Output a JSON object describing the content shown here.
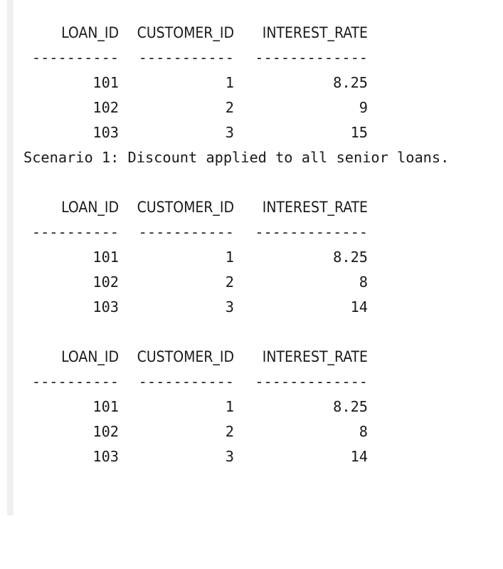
{
  "columns": {
    "col1": "LOAN_ID",
    "col2": "CUSTOMER_ID",
    "col3": "INTEREST_RATE"
  },
  "separators": {
    "col1": "----------",
    "col2": "-----------",
    "col3": "-------------"
  },
  "tables": [
    {
      "rows": [
        {
          "loan_id": "101",
          "customer_id": "1",
          "interest_rate": "8.25"
        },
        {
          "loan_id": "102",
          "customer_id": "2",
          "interest_rate": "9"
        },
        {
          "loan_id": "103",
          "customer_id": "3",
          "interest_rate": "15"
        }
      ]
    },
    {
      "rows": [
        {
          "loan_id": "101",
          "customer_id": "1",
          "interest_rate": "8.25"
        },
        {
          "loan_id": "102",
          "customer_id": "2",
          "interest_rate": "8"
        },
        {
          "loan_id": "103",
          "customer_id": "3",
          "interest_rate": "14"
        }
      ]
    },
    {
      "rows": [
        {
          "loan_id": "101",
          "customer_id": "1",
          "interest_rate": "8.25"
        },
        {
          "loan_id": "102",
          "customer_id": "2",
          "interest_rate": "8"
        },
        {
          "loan_id": "103",
          "customer_id": "3",
          "interest_rate": "14"
        }
      ]
    }
  ],
  "messages": {
    "scenario1": "Scenario 1: Discount applied to all senior loans."
  }
}
